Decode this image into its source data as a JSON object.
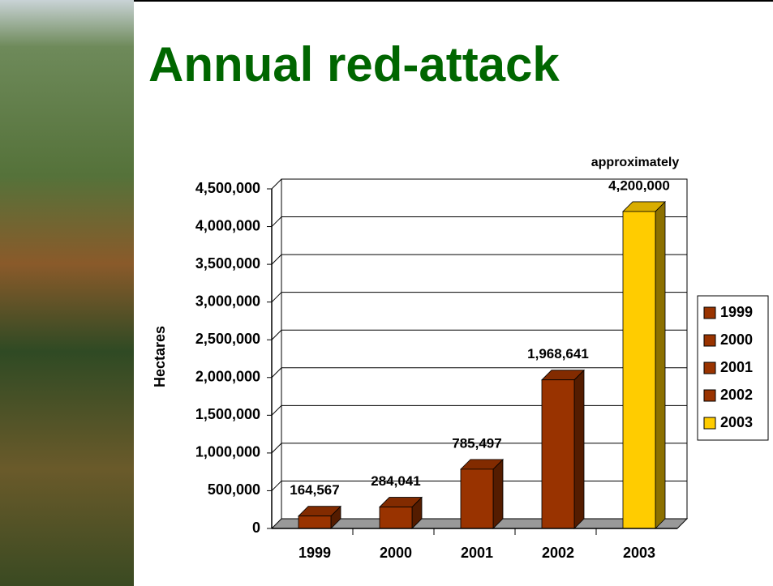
{
  "chart_data": {
    "type": "bar3d",
    "title": "Annual red-attack",
    "y_label": "Hectares",
    "annotation": "approximately",
    "categories": [
      "1999",
      "2000",
      "2001",
      "2002",
      "2003"
    ],
    "values": [
      164567,
      284041,
      785497,
      1968641,
      4200000
    ],
    "value_labels": [
      "164,567",
      "284,041",
      "785,497",
      "1,968,641",
      "4,200,000"
    ],
    "colors": [
      "#993300",
      "#993300",
      "#993300",
      "#993300",
      "#ffcc00"
    ],
    "ylim": [
      0,
      4500000
    ],
    "yticks": [
      0,
      {
        "value": 500000,
        "label": "500,000"
      },
      {
        "value": 1000000,
        "label": "1,000,000"
      },
      {
        "value": 1500000,
        "label": "1,500,000"
      },
      {
        "value": 2000000,
        "label": "2,000,000"
      },
      {
        "value": 2500000,
        "label": "2,500,000"
      },
      {
        "value": 3000000,
        "label": "3,000,000"
      },
      {
        "value": 3500000,
        "label": "3,500,000"
      },
      {
        "value": 4000000,
        "label": "4,000,000"
      },
      {
        "value": 4500000,
        "label": "4,500,000"
      }
    ],
    "grid": true,
    "legend": "right"
  }
}
